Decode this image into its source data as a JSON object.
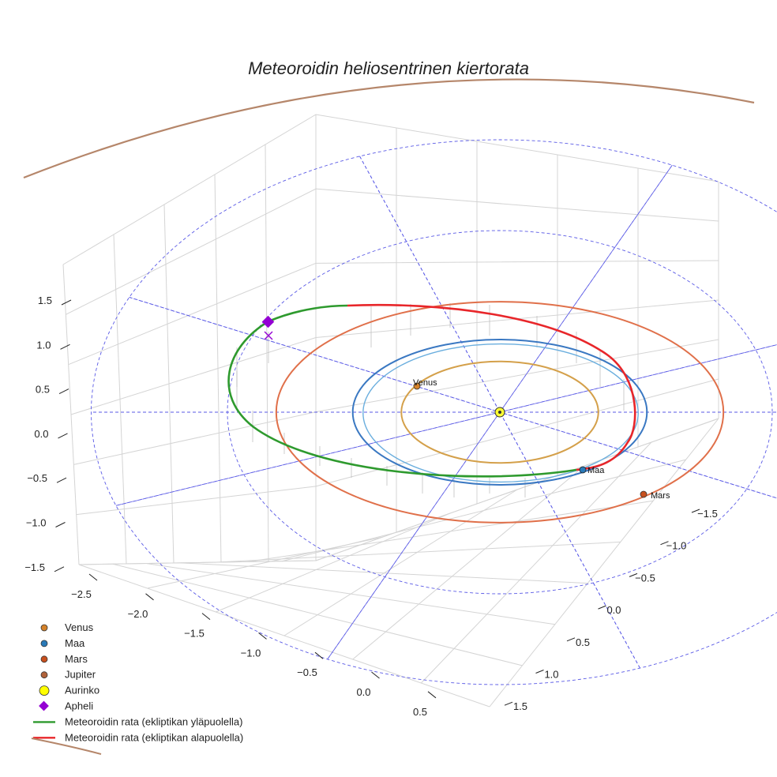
{
  "chart_data": {
    "type": "3d-line",
    "title": "Meteoroidin heliosentrinen kiertorata",
    "axes": {
      "x_ticks": [
        "−2.5",
        "−2.0",
        "−1.5",
        "−1.0",
        "−0.5",
        "0.0",
        "0.5"
      ],
      "y_ticks": [
        "−1.5",
        "−1.0",
        "−0.5",
        "0.0",
        "0.5",
        "1.0",
        "1.5"
      ],
      "z_ticks": [
        "1.5",
        "1.0",
        "0.5",
        "0.0",
        "−0.5",
        "−1.0",
        "−1.5"
      ]
    },
    "orbits": [
      {
        "name": "Venus",
        "radius_au": 0.72,
        "color": "#d4a04a"
      },
      {
        "name": "Maa",
        "radius_au": 1.0,
        "color": "#3a78c2"
      },
      {
        "name": "Mars",
        "radius_au": 1.52,
        "color": "#e0704a"
      },
      {
        "name": "Jupiter",
        "radius_au": 5.2,
        "color": "#b5866a"
      }
    ],
    "meteoroid_orbit": {
      "above_ecliptic": {
        "label": "Meteoroidin rata (ekliptikan yläpuolella)",
        "color": "#2e9a2e"
      },
      "below_ecliptic": {
        "label": "Meteoroidin rata (ekliptikan alapuolella)",
        "color": "#e8262a"
      }
    },
    "planet_labels": [
      "Venus",
      "Maa",
      "Mars"
    ],
    "legend": [
      {
        "label": "Venus",
        "marker": "circle",
        "color": "#d4822a"
      },
      {
        "label": "Maa",
        "marker": "circle",
        "color": "#2a7ab8"
      },
      {
        "label": "Mars",
        "marker": "circle",
        "color": "#c8501e"
      },
      {
        "label": "Jupiter",
        "marker": "circle",
        "color": "#b0623a"
      },
      {
        "label": "Aurinko",
        "marker": "circle-large",
        "color": "#ffff00"
      },
      {
        "label": "Apheli",
        "marker": "diamond",
        "color": "#9400d3"
      },
      {
        "label": "Meteoroidin rata (ekliptikan yläpuolella)",
        "marker": "line",
        "color": "#2e9a2e"
      },
      {
        "label": "Meteoroidin rata (ekliptikan alapuolella)",
        "marker": "line",
        "color": "#e8262a"
      }
    ],
    "legend_position": "bottom-left"
  }
}
